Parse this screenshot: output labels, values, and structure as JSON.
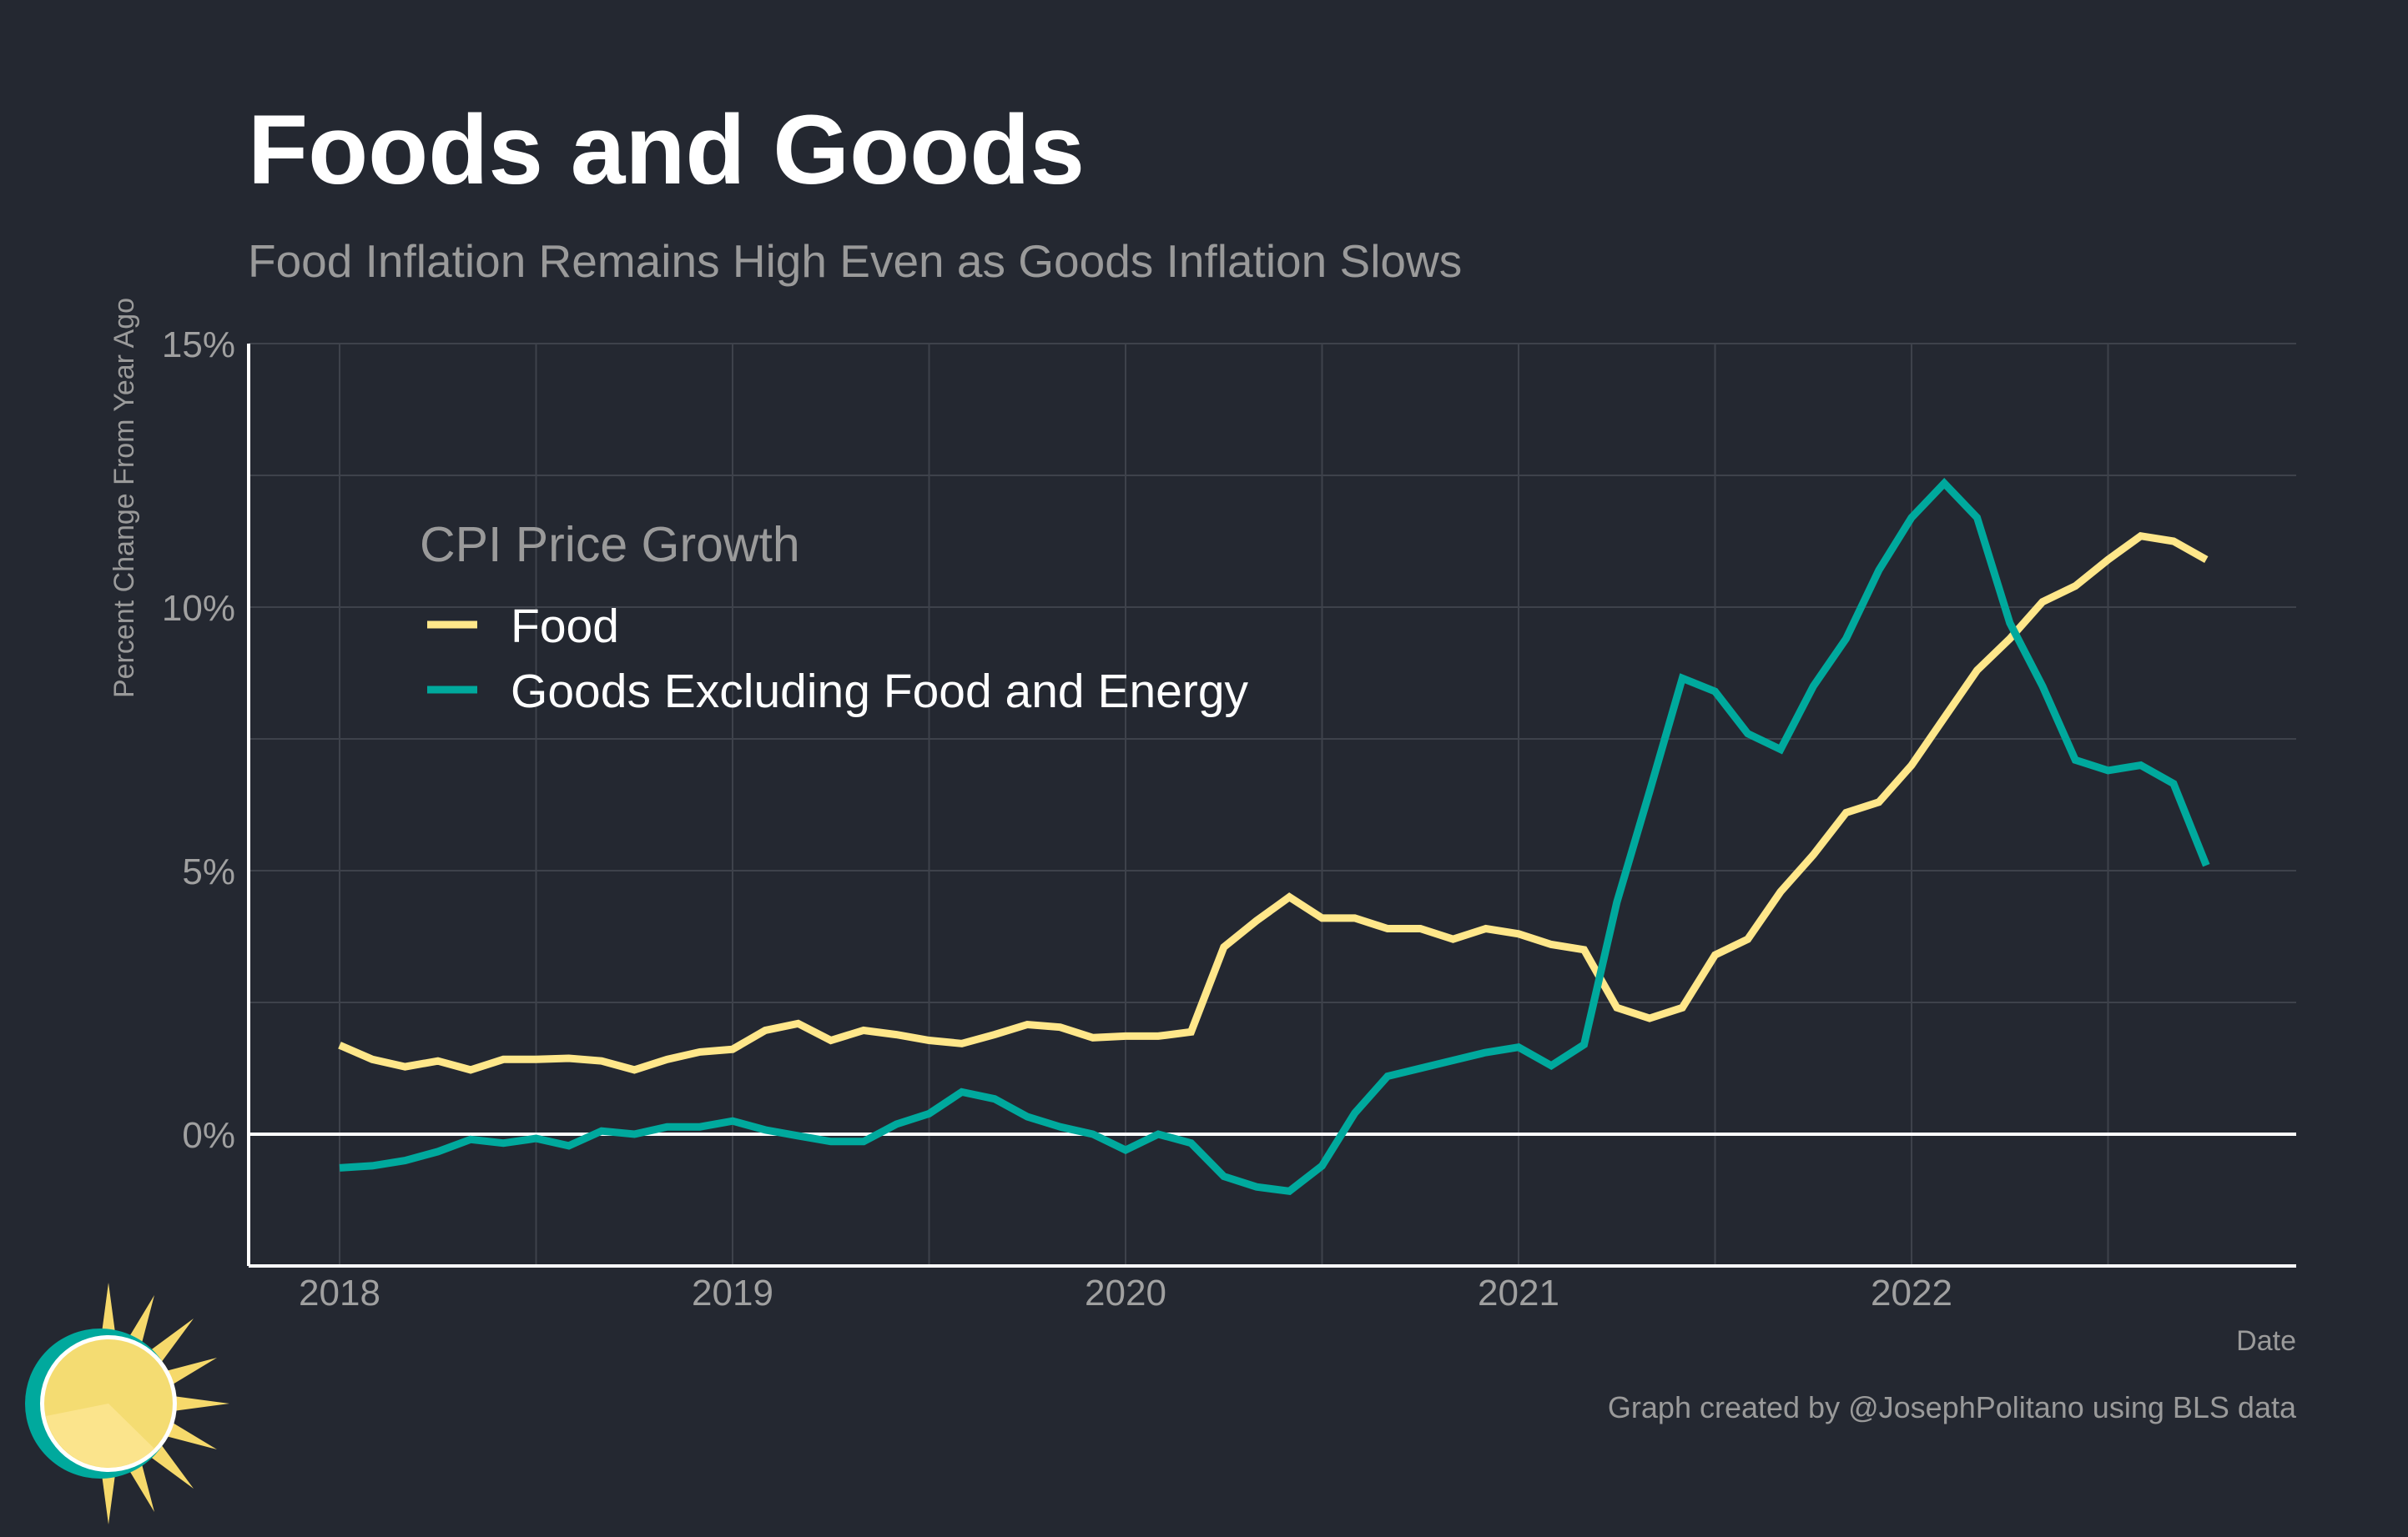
{
  "chart_data": {
    "type": "line",
    "title": "Foods and Goods",
    "subtitle": "Food Inflation Remains High Even as Goods Inflation Slows",
    "xlabel": "Date",
    "ylabel": "Percent Change From Year Ago",
    "x_start": "2018-01",
    "x_frequency": "monthly",
    "x_ticks": [
      "2018",
      "2019",
      "2020",
      "2021",
      "2022"
    ],
    "y_ticks": [
      "0%",
      "5%",
      "10%",
      "15%"
    ],
    "ylim": [
      -2.5,
      15
    ],
    "xlim": [
      "2017-10",
      "2022-12"
    ],
    "grid": true,
    "legend": {
      "title": "CPI Price Growth",
      "placement": "upper-left"
    },
    "series": [
      {
        "name": "Food",
        "color": "#ffe78a",
        "values": [
          1.69,
          1.42,
          1.28,
          1.39,
          1.22,
          1.42,
          1.42,
          1.44,
          1.39,
          1.22,
          1.42,
          1.56,
          1.61,
          1.97,
          2.1,
          1.78,
          1.97,
          1.89,
          1.78,
          1.72,
          1.89,
          2.08,
          2.03,
          1.83,
          1.86,
          1.86,
          1.94,
          3.55,
          4.05,
          4.5,
          4.1,
          4.1,
          3.9,
          3.9,
          3.7,
          3.9,
          3.8,
          3.6,
          3.5,
          2.4,
          2.2,
          2.4,
          3.4,
          3.7,
          4.6,
          5.3,
          6.1,
          6.3,
          7.0,
          7.9,
          8.8,
          9.4,
          10.1,
          10.4,
          10.9,
          11.35,
          11.25,
          10.9
        ]
      },
      {
        "name": "Goods Excluding Food and Energy",
        "color": "#00a99d",
        "values": [
          -0.64,
          -0.6,
          -0.5,
          -0.33,
          -0.1,
          -0.17,
          -0.08,
          -0.22,
          0.06,
          0.0,
          0.14,
          0.14,
          0.25,
          0.08,
          -0.03,
          -0.14,
          -0.14,
          0.19,
          0.39,
          0.8,
          0.67,
          0.33,
          0.14,
          0.0,
          -0.3,
          0.0,
          -0.17,
          -0.8,
          -1.0,
          -1.08,
          -0.6,
          0.4,
          1.1,
          1.25,
          1.4,
          1.55,
          1.65,
          1.3,
          1.7,
          4.4,
          6.5,
          8.65,
          8.4,
          7.6,
          7.3,
          8.5,
          9.4,
          10.7,
          11.7,
          12.35,
          11.7,
          9.7,
          8.5,
          7.1,
          6.9,
          7.0,
          6.65,
          5.1
        ]
      }
    ]
  },
  "credit": "Graph created by @JosephPolitano using BLS data",
  "colors": {
    "background": "#242831",
    "grid": "#3e424b",
    "axis": "#ffffff"
  }
}
